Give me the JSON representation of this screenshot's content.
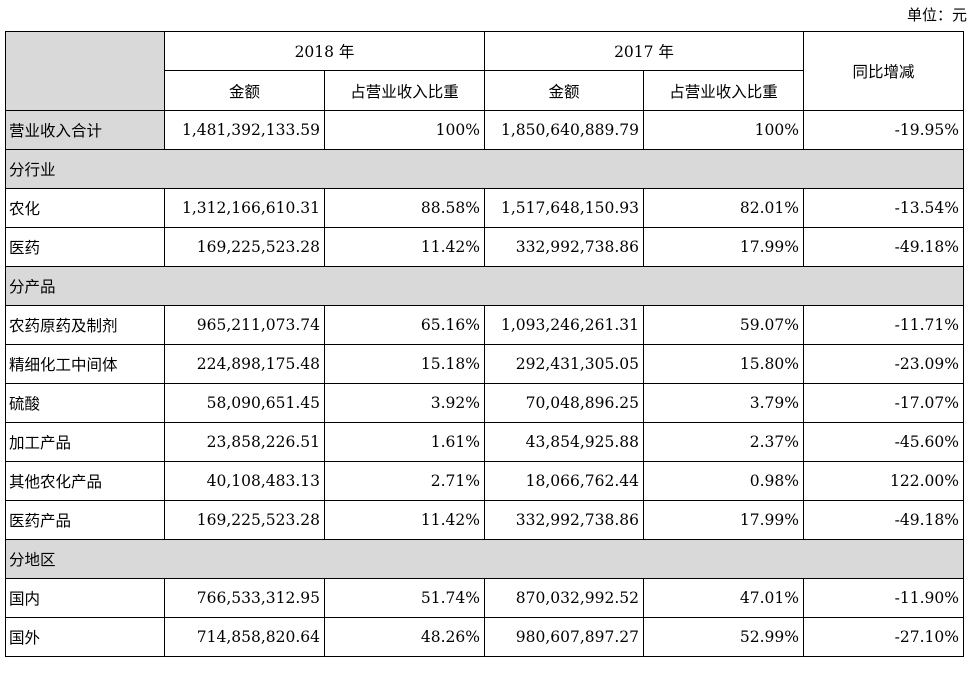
{
  "unit_label": "单位：元",
  "header": {
    "year_2018": "2018 年",
    "year_2017": "2017 年",
    "amount": "金额",
    "ratio": "占营业收入比重",
    "yoy": "同比增减"
  },
  "total": {
    "label": "营业收入合计",
    "amt2018": "1,481,392,133.59",
    "pct2018": "100%",
    "amt2017": "1,850,640,889.79",
    "pct2017": "100%",
    "yoy": "-19.95%"
  },
  "sections": {
    "industry": "分行业",
    "product": "分产品",
    "region": "分地区"
  },
  "rows": {
    "nonghua": {
      "label": "农化",
      "amt2018": "1,312,166,610.31",
      "pct2018": "88.58%",
      "amt2017": "1,517,648,150.93",
      "pct2017": "82.01%",
      "yoy": "-13.54%"
    },
    "yiyao": {
      "label": "医药",
      "amt2018": "169,225,523.28",
      "pct2018": "11.42%",
      "amt2017": "332,992,738.86",
      "pct2017": "17.99%",
      "yoy": "-49.18%"
    },
    "nongyao": {
      "label": "农药原药及制剂",
      "amt2018": "965,211,073.74",
      "pct2018": "65.16%",
      "amt2017": "1,093,246,261.31",
      "pct2017": "59.07%",
      "yoy": "-11.71%"
    },
    "jingxi": {
      "label": "精细化工中间体",
      "amt2018": "224,898,175.48",
      "pct2018": "15.18%",
      "amt2017": "292,431,305.05",
      "pct2017": "15.80%",
      "yoy": "-23.09%"
    },
    "liusuan": {
      "label": "硫酸",
      "amt2018": "58,090,651.45",
      "pct2018": "3.92%",
      "amt2017": "70,048,896.25",
      "pct2017": "3.79%",
      "yoy": "-17.07%"
    },
    "jiagong": {
      "label": "加工产品",
      "amt2018": "23,858,226.51",
      "pct2018": "1.61%",
      "amt2017": "43,854,925.88",
      "pct2017": "2.37%",
      "yoy": "-45.60%"
    },
    "qita": {
      "label": "其他农化产品",
      "amt2018": "40,108,483.13",
      "pct2018": "2.71%",
      "amt2017": "18,066,762.44",
      "pct2017": "0.98%",
      "yoy": "122.00%"
    },
    "yiyaochanpin": {
      "label": "医药产品",
      "amt2018": "169,225,523.28",
      "pct2018": "11.42%",
      "amt2017": "332,992,738.86",
      "pct2017": "17.99%",
      "yoy": "-49.18%"
    },
    "guonei": {
      "label": "国内",
      "amt2018": "766,533,312.95",
      "pct2018": "51.74%",
      "amt2017": "870,032,992.52",
      "pct2017": "47.01%",
      "yoy": "-11.90%"
    },
    "guowai": {
      "label": "国外",
      "amt2018": "714,858,820.64",
      "pct2018": "48.26%",
      "amt2017": "980,607,897.27",
      "pct2017": "52.99%",
      "yoy": "-27.10%"
    }
  }
}
